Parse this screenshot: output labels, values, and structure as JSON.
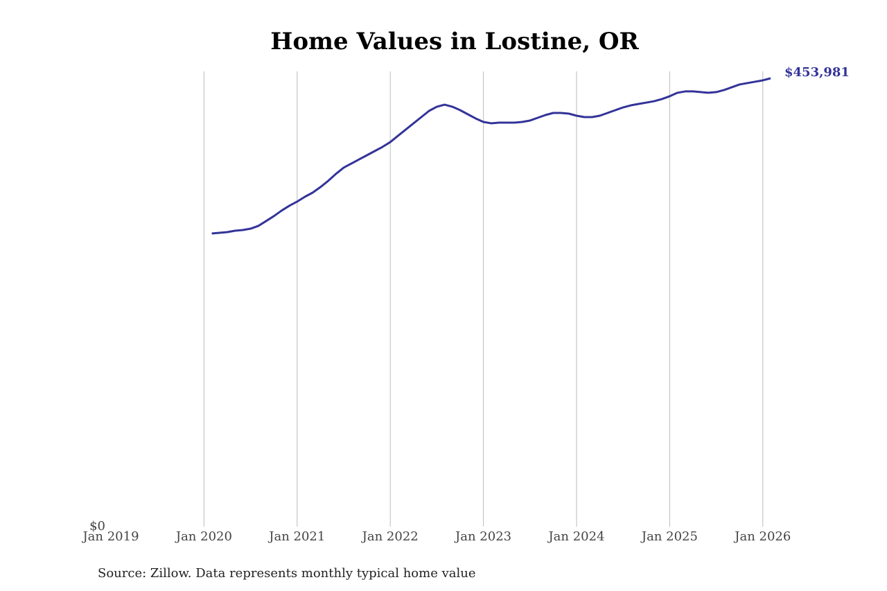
{
  "chart_data": {
    "type": "line",
    "title": "Home Values in Lostine, OR",
    "source": "Source: Zillow. Data represents monthly typical home value",
    "x": [
      "2020-02",
      "2020-03",
      "2020-04",
      "2020-05",
      "2020-06",
      "2020-07",
      "2020-08",
      "2020-09",
      "2020-10",
      "2020-11",
      "2020-12",
      "2021-01",
      "2021-02",
      "2021-03",
      "2021-04",
      "2021-05",
      "2021-06",
      "2021-07",
      "2021-08",
      "2021-09",
      "2021-10",
      "2021-11",
      "2021-12",
      "2022-01",
      "2022-02",
      "2022-03",
      "2022-04",
      "2022-05",
      "2022-06",
      "2022-07",
      "2022-08",
      "2022-09",
      "2022-10",
      "2022-11",
      "2022-12",
      "2023-01",
      "2023-02",
      "2023-03",
      "2023-04",
      "2023-05",
      "2023-06",
      "2023-07",
      "2023-08",
      "2023-09",
      "2023-10",
      "2023-11",
      "2023-12",
      "2024-01",
      "2024-02",
      "2024-03",
      "2024-04",
      "2024-05",
      "2024-06",
      "2024-07",
      "2024-08",
      "2024-09",
      "2024-10",
      "2024-11",
      "2024-12",
      "2025-01",
      "2025-02",
      "2025-03",
      "2025-04",
      "2025-05",
      "2025-06",
      "2025-07",
      "2025-08",
      "2025-09",
      "2025-10",
      "2025-11",
      "2025-12",
      "2026-01",
      "2026-02"
    ],
    "values": [
      296800,
      297500,
      298200,
      299600,
      300300,
      301700,
      304500,
      309400,
      314400,
      320000,
      324900,
      329100,
      334000,
      338200,
      343800,
      350100,
      357200,
      363500,
      367700,
      371900,
      376100,
      380300,
      384500,
      389400,
      395800,
      402100,
      408400,
      414700,
      421000,
      425200,
      427300,
      425200,
      421700,
      417500,
      413300,
      409800,
      408400,
      409100,
      409100,
      409100,
      409800,
      411200,
      414000,
      416800,
      418900,
      418900,
      418200,
      416100,
      414700,
      414700,
      416100,
      418900,
      421700,
      424500,
      426600,
      428000,
      429400,
      430800,
      433000,
      435800,
      439300,
      440700,
      440700,
      440000,
      439300,
      440000,
      442100,
      444900,
      447700,
      449100,
      450500,
      451900,
      453981
    ],
    "value_labels": [
      null,
      null,
      null,
      null,
      null,
      null,
      null,
      null,
      null,
      null,
      null,
      null,
      null,
      null,
      null,
      null,
      null,
      null,
      null,
      null,
      null,
      null,
      null,
      null,
      null,
      null,
      null,
      null,
      null,
      null,
      null,
      null,
      null,
      null,
      null,
      null,
      null,
      null,
      null,
      null,
      null,
      null,
      null,
      null,
      null,
      null,
      null,
      null,
      null,
      null,
      null,
      null,
      null,
      null,
      null,
      null,
      null,
      null,
      null,
      null,
      null,
      null,
      null,
      null,
      null,
      null,
      null,
      null,
      null,
      null,
      null,
      null,
      "$453,981"
    ],
    "color": "#333399",
    "xlim": [
      "2019-01",
      "2026-02"
    ],
    "xticks": [
      {
        "value": "2019-01",
        "label": "Jan 2019"
      },
      {
        "value": "2020-01",
        "label": "Jan 2020"
      },
      {
        "value": "2021-01",
        "label": "Jan 2021"
      },
      {
        "value": "2022-01",
        "label": "Jan 2022"
      },
      {
        "value": "2023-01",
        "label": "Jan 2023"
      },
      {
        "value": "2024-01",
        "label": "Jan 2024"
      },
      {
        "value": "2025-01",
        "label": "Jan 2025"
      },
      {
        "value": "2026-01",
        "label": "Jan 2026"
      }
    ],
    "ylim": [
      0,
      461000
    ],
    "yticks": [
      {
        "value": 0,
        "label": "$0"
      }
    ],
    "grid": true
  }
}
